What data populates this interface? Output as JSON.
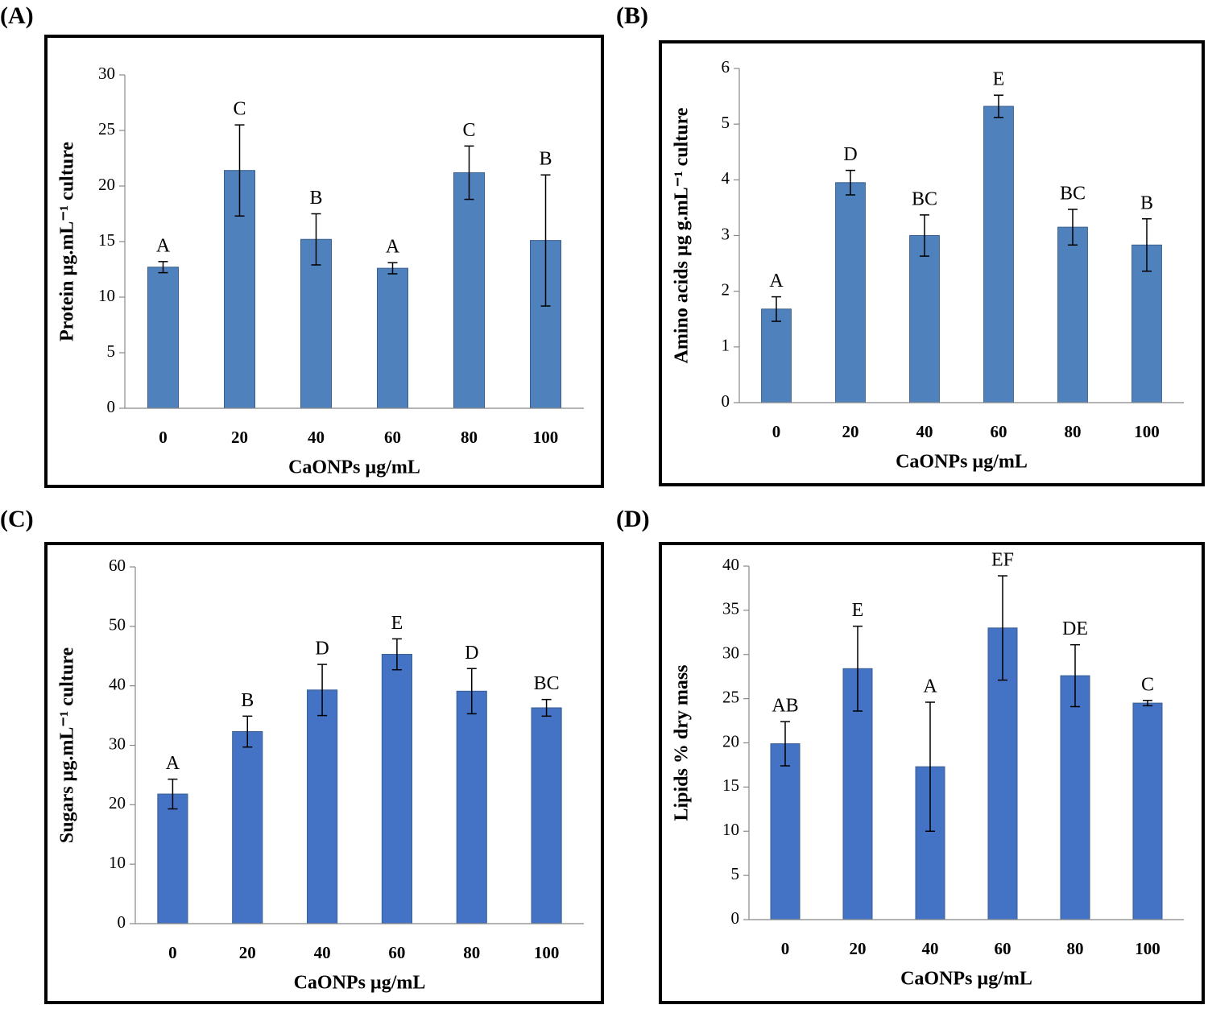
{
  "chart_data": [
    {
      "type": "bar",
      "panel_label": "(A)",
      "y_label": "Protein µg.mL⁻¹ culture",
      "x_label": "CaONPs µg/mL",
      "categories": [
        "0",
        "20",
        "40",
        "60",
        "80",
        "100"
      ],
      "values": [
        12.7,
        21.4,
        15.2,
        12.6,
        21.2,
        15.1
      ],
      "errors": [
        0.5,
        4.1,
        2.3,
        0.5,
        2.4,
        5.9
      ],
      "annotations": [
        "A",
        "C",
        "B",
        "A",
        "C",
        "B"
      ],
      "color": "#4f81bd",
      "ylim": [
        0,
        30
      ],
      "yticks": [
        0,
        5,
        10,
        15,
        20,
        25,
        30
      ]
    },
    {
      "type": "bar",
      "panel_label": "(B)",
      "y_label": "Amino acids µg g.mL⁻¹ culture",
      "x_label": "CaONPs µg/mL",
      "categories": [
        "0",
        "20",
        "40",
        "60",
        "80",
        "100"
      ],
      "values": [
        1.68,
        3.95,
        3.0,
        5.32,
        3.15,
        2.83
      ],
      "errors": [
        0.22,
        0.22,
        0.37,
        0.2,
        0.32,
        0.47
      ],
      "annotations": [
        "A",
        "D",
        "BC",
        "E",
        "BC",
        "B"
      ],
      "color": "#4f81bd",
      "ylim": [
        0,
        6
      ],
      "yticks": [
        0,
        1,
        2,
        3,
        4,
        5,
        6
      ]
    },
    {
      "type": "bar",
      "panel_label": "(C)",
      "y_label": "Sugars µg.mL⁻¹ culture",
      "x_label": "CaONPs µg/mL",
      "categories": [
        "0",
        "20",
        "40",
        "60",
        "80",
        "100"
      ],
      "values": [
        21.8,
        32.3,
        39.3,
        45.3,
        39.1,
        36.3
      ],
      "errors": [
        2.5,
        2.6,
        4.3,
        2.6,
        3.8,
        1.4
      ],
      "annotations": [
        "A",
        "B",
        "D",
        "E",
        "D",
        "BC"
      ],
      "color": "#4472c4",
      "ylim": [
        0,
        60
      ],
      "yticks": [
        0,
        10,
        20,
        30,
        40,
        50,
        60
      ]
    },
    {
      "type": "bar",
      "panel_label": "(D)",
      "y_label": "Lipids % dry mass",
      "x_label": "CaONPs µg/mL",
      "categories": [
        "0",
        "20",
        "40",
        "60",
        "80",
        "100"
      ],
      "values": [
        19.9,
        28.4,
        17.3,
        33.0,
        27.6,
        24.5
      ],
      "errors": [
        2.5,
        4.8,
        7.3,
        5.9,
        3.5,
        0.3
      ],
      "annotations": [
        "AB",
        "E",
        "A",
        "EF",
        "DE",
        "C"
      ],
      "color": "#4472c4",
      "ylim": [
        0,
        40
      ],
      "yticks": [
        0,
        5,
        10,
        15,
        20,
        25,
        30,
        35,
        40
      ]
    }
  ]
}
